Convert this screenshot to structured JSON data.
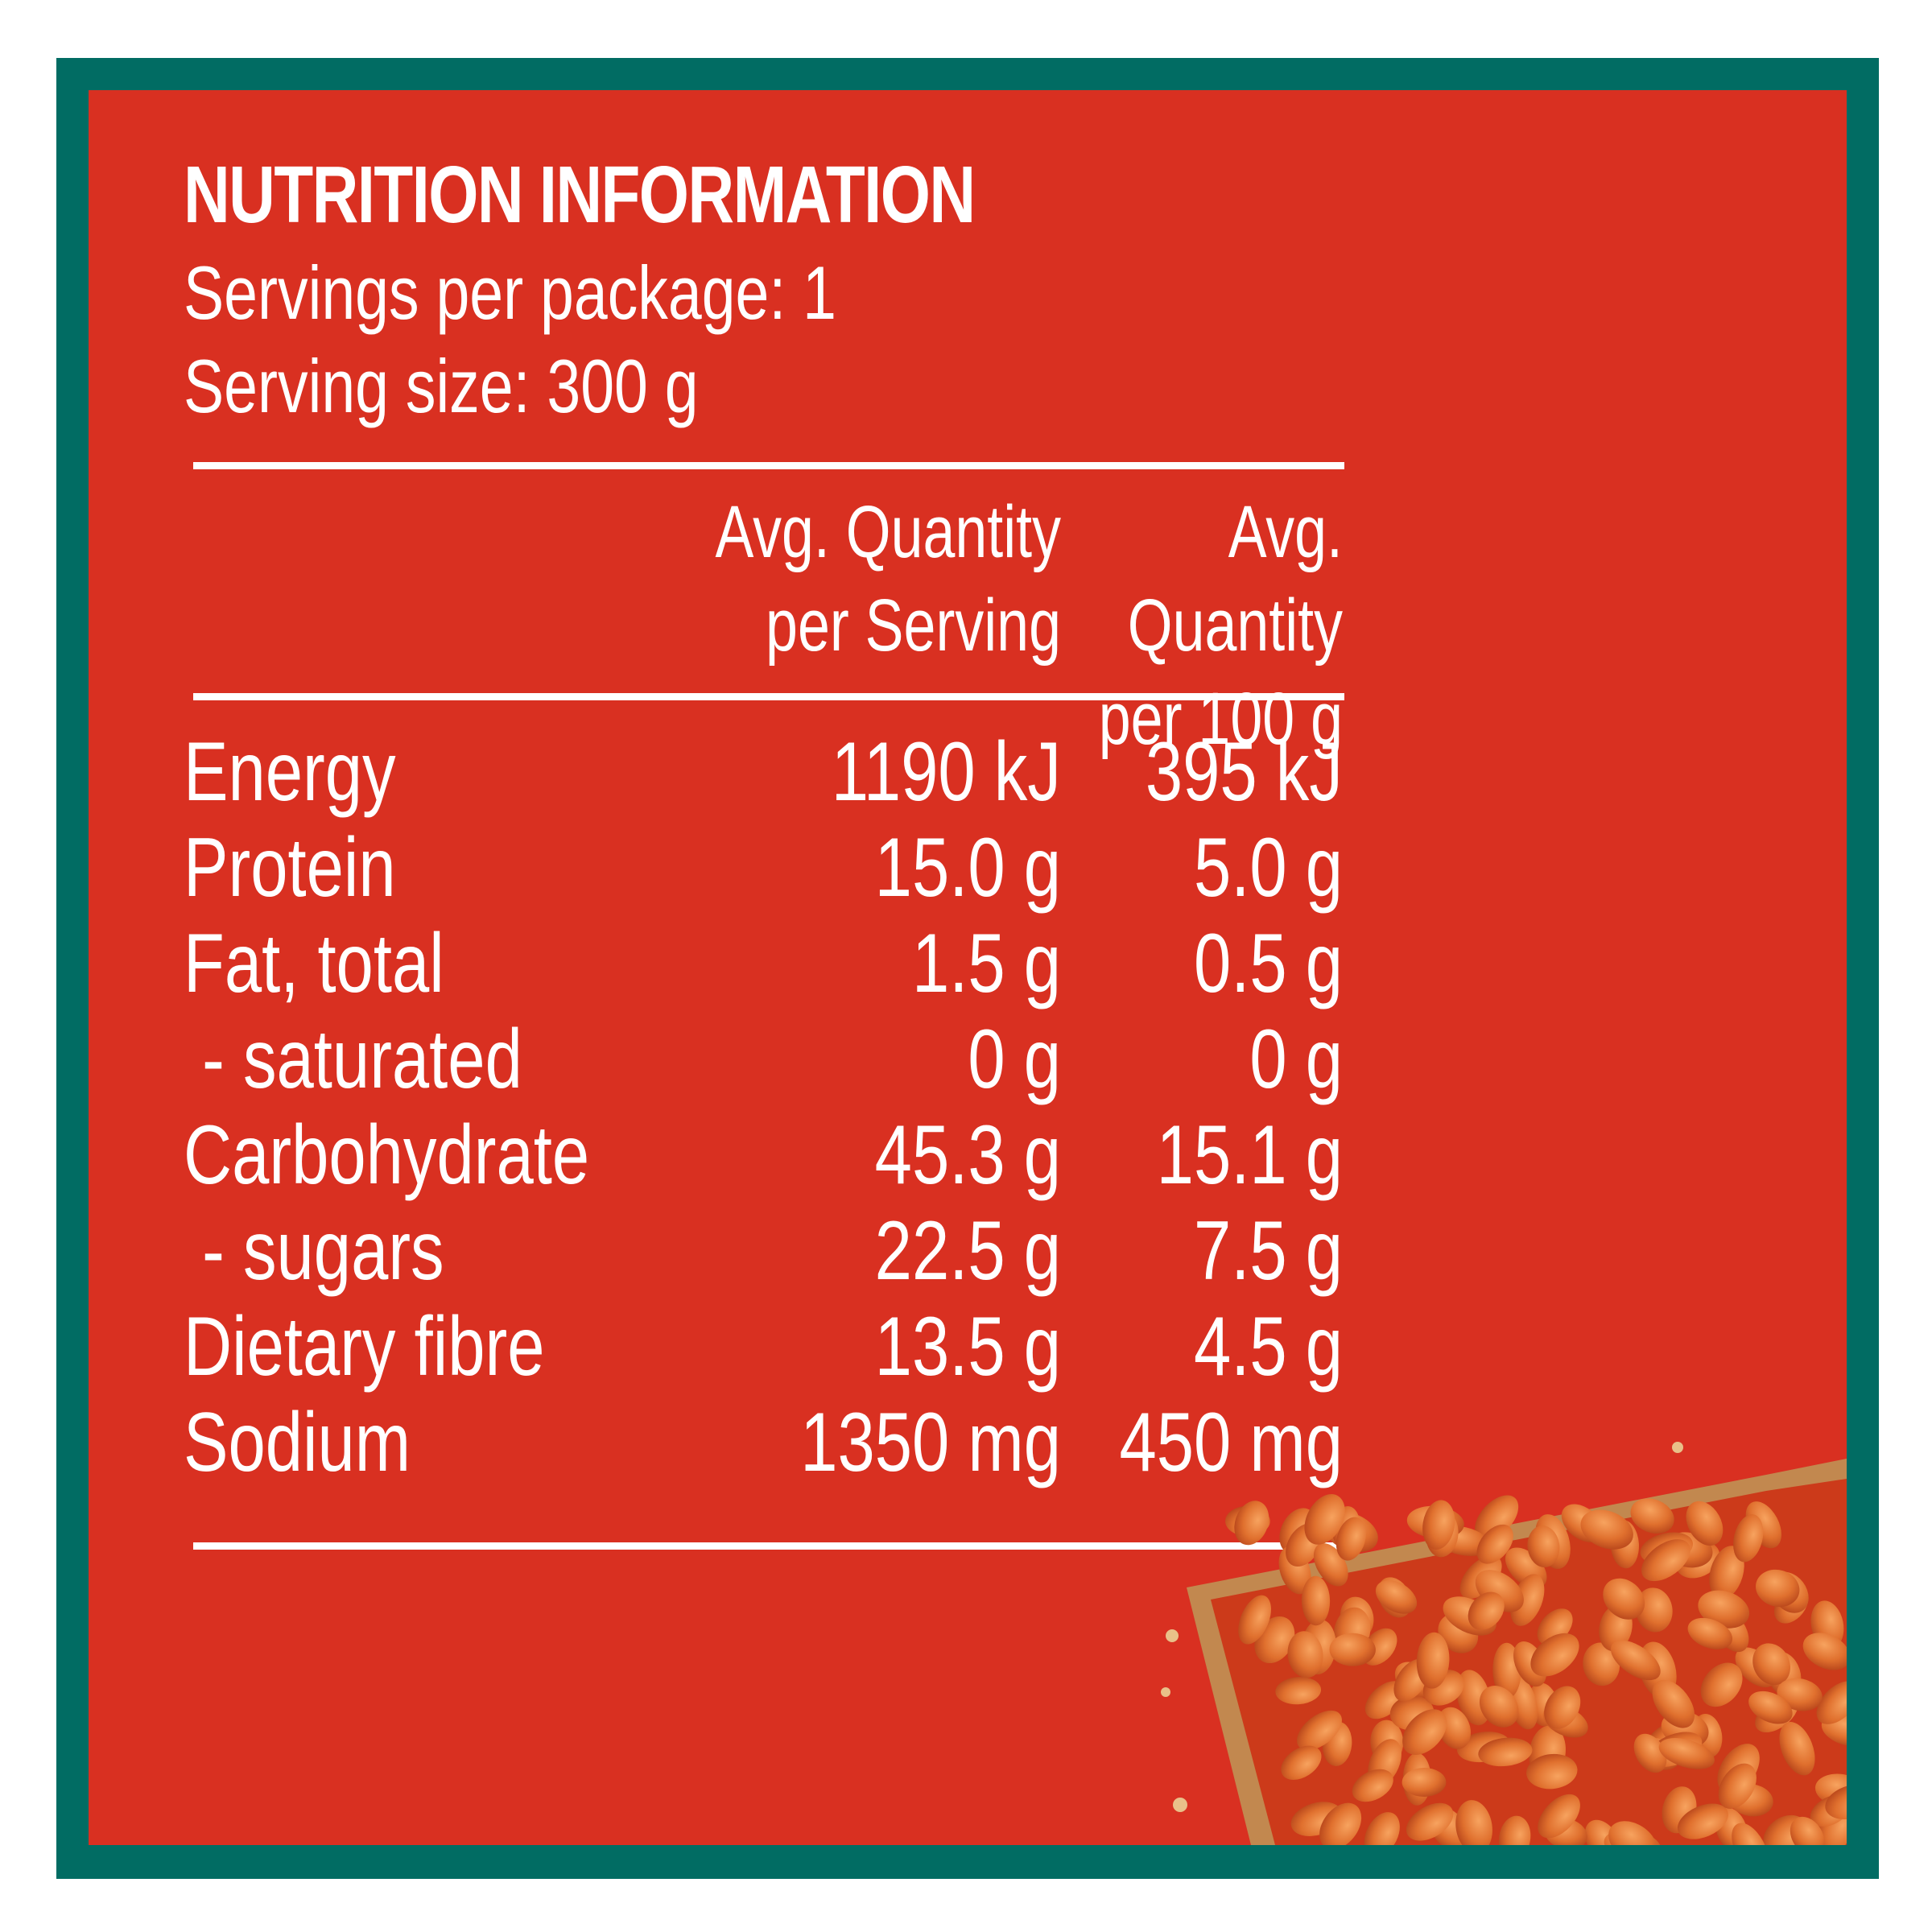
{
  "label": {
    "title": "NUTRITION INFORMATION",
    "servings_per_package": "Servings per package: 1",
    "serving_size": "Serving size: 300 g",
    "col_serving": "Avg. Quantity\nper Serving",
    "col_100g": "Avg. Quantity\nper 100 g"
  },
  "rows": [
    {
      "name": "Energy",
      "serving": "1190 kJ",
      "per100": "395 kJ"
    },
    {
      "name": "Protein",
      "serving": "15.0 g",
      "per100": "5.0 g"
    },
    {
      "name": "Fat, total",
      "serving": "1.5 g",
      "per100": "0.5 g"
    },
    {
      "name": " - saturated",
      "serving": "0 g",
      "per100": "0 g"
    },
    {
      "name": "Carbohydrate",
      "serving": "45.3 g",
      "per100": "15.1 g"
    },
    {
      "name": " - sugars",
      "serving": "22.5 g",
      "per100": "7.5 g"
    },
    {
      "name": "Dietary fibre",
      "serving": "13.5 g",
      "per100": "4.5 g"
    },
    {
      "name": "Sodium",
      "serving": "1350 mg",
      "per100": "450 mg"
    }
  ],
  "colors": {
    "border": "#016c63",
    "background": "#d93021",
    "text": "#ffffff"
  }
}
